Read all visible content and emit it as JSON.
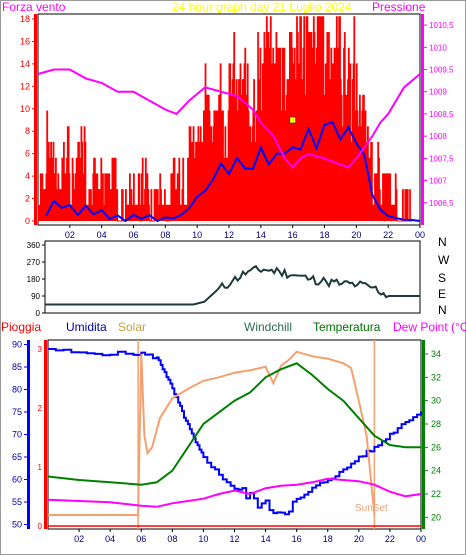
{
  "panel_wind": {
    "left_title": "Forza vento",
    "center_title": "24 hour graph day   21 Luglio 2024",
    "right_title": "Pressione",
    "colors": {
      "left": "#ff00ff",
      "center": "#ffff00",
      "right": "#ff00ff"
    }
  },
  "panel_dir": {
    "compass_labels": [
      "N",
      "W",
      "S",
      "E",
      "N"
    ]
  },
  "panel_weather": {
    "header_labels": [
      {
        "text": "Pioggia",
        "color": "#ff0000"
      },
      {
        "text": "Umidita",
        "color": "#0000aa"
      },
      {
        "text": "Solar",
        "color": "#c8a040"
      },
      {
        "text": "Windchill",
        "color": "#2e6b4f"
      },
      {
        "text": "Temperatura",
        "color": "#007000"
      },
      {
        "text": "Dew Point (°C)",
        "color": "#ff00ff"
      }
    ],
    "sunset_label": "SunSet"
  },
  "chart_data": [
    {
      "type": "line",
      "title": "24 hour graph day   21 Luglio 2024",
      "x_ticks": [
        "02",
        "04",
        "06",
        "08",
        "10",
        "12",
        "14",
        "16",
        "18",
        "20",
        "22",
        "00"
      ],
      "y_left": {
        "label": "Forza vento",
        "range": [
          0,
          18
        ],
        "ticks": [
          "0",
          "2",
          "4",
          "6",
          "8",
          "10",
          "12",
          "14",
          "16",
          "18"
        ]
      },
      "y_right": {
        "label": "Pressione",
        "range": [
          1006,
          1010.75
        ],
        "ticks": [
          "1006,5",
          "1007",
          "1007,5",
          "1008",
          "1008,5",
          "1009",
          "1009,5",
          "1010",
          "1010,5"
        ]
      },
      "series": [
        {
          "color": "#ff0000",
          "axis": "left",
          "style": "gust",
          "x": [
            0.5,
            1,
            1.5,
            2,
            2.5,
            3,
            3.5,
            4,
            4.5,
            5,
            5.5,
            6,
            6.5,
            7,
            7.5,
            8,
            8.5,
            9,
            9.5,
            10,
            10.5,
            11,
            11.5,
            12,
            12.5,
            13,
            13.5,
            14,
            14.5,
            15,
            15.5,
            16,
            16.5,
            17,
            17.5,
            18,
            18.5,
            19,
            19.5,
            20,
            20.5,
            21,
            21.5,
            22,
            22.5,
            23,
            23.5,
            24
          ],
          "values": [
            2,
            5,
            3,
            4,
            2,
            5,
            2,
            3,
            1,
            2,
            0,
            2,
            1,
            2,
            0,
            2,
            1,
            2,
            3,
            6,
            7,
            8,
            9,
            8,
            10,
            9,
            10,
            11,
            12,
            11,
            13,
            12,
            13,
            14,
            13,
            15,
            14,
            13,
            12,
            11,
            8,
            5,
            3,
            1,
            1,
            0,
            0,
            0
          ]
        },
        {
          "color": "#0000ff",
          "axis": "left",
          "style": "average",
          "x": [
            0.5,
            1,
            1.5,
            2,
            2.5,
            3,
            3.5,
            4,
            4.5,
            5,
            5.5,
            6,
            6.5,
            7,
            7.5,
            8,
            8.5,
            9,
            9.5,
            10,
            10.5,
            11,
            11.5,
            12,
            12.5,
            13,
            13.5,
            14,
            14.5,
            15,
            15.5,
            16,
            16.5,
            17,
            17.5,
            18,
            18.5,
            19,
            19.5,
            20,
            20.5,
            21,
            21.5,
            22,
            22.5,
            23,
            23.5,
            24
          ],
          "values": [
            0.5,
            2,
            1,
            1.5,
            0.5,
            1.5,
            0.5,
            1,
            0.2,
            0.5,
            0,
            0.5,
            0.2,
            0.5,
            0,
            0.4,
            0.2,
            0.5,
            1,
            2.5,
            3,
            4,
            4.5,
            4,
            5,
            5,
            5,
            6,
            6,
            5.5,
            6,
            6.5,
            7,
            8,
            8,
            9,
            9.5,
            9,
            8.5,
            8,
            5,
            2,
            1,
            0.5,
            0.3,
            0.1,
            0.1,
            0
          ],
          "highlights": [
            {
              "x": 16,
              "value": 9
            }
          ]
        },
        {
          "color": "#ff00ff",
          "axis": "right",
          "name": "Pressione",
          "x": [
            0,
            1,
            2,
            3,
            4,
            5,
            6,
            7,
            8,
            8.7,
            9.5,
            10.5,
            11.5,
            12.5,
            13.5,
            14,
            14.8,
            15.5,
            16,
            16.5,
            17,
            18,
            18.7,
            19.5,
            20,
            21,
            21.5,
            22,
            22.5,
            23,
            24
          ],
          "values": [
            1009.4,
            1009.5,
            1009.5,
            1009.3,
            1009.2,
            1009.0,
            1009.0,
            1008.8,
            1008.6,
            1008.5,
            1008.8,
            1009.1,
            1009.0,
            1008.9,
            1008.6,
            1008.3,
            1008.0,
            1007.5,
            1007.3,
            1007.5,
            1007.6,
            1007.5,
            1007.4,
            1007.3,
            1007.5,
            1008.0,
            1008.3,
            1008.5,
            1008.8,
            1009.1,
            1009.4
          ]
        }
      ]
    },
    {
      "type": "line",
      "title": "",
      "x_ticks": [],
      "y": {
        "range": [
          0,
          360
        ],
        "ticks": [
          "0",
          "90",
          "180",
          "270",
          "360"
        ]
      },
      "series": [
        {
          "color": "#1f3a3a",
          "x": [
            0,
            6,
            8,
            9.5,
            10.2,
            11,
            12,
            13,
            14,
            15,
            16,
            17,
            18,
            19,
            20,
            21,
            22,
            23,
            24
          ],
          "values": [
            45,
            45,
            45,
            45,
            60,
            120,
            170,
            220,
            230,
            220,
            200,
            180,
            165,
            155,
            150,
            135,
            90,
            90,
            90
          ]
        }
      ]
    },
    {
      "type": "line",
      "title": "",
      "x_ticks": [
        "02",
        "04",
        "06",
        "08",
        "10",
        "12",
        "14",
        "16",
        "18",
        "20",
        "22",
        "00"
      ],
      "y_left": {
        "range": [
          49,
          91
        ],
        "ticks": [
          "50",
          "55",
          "60",
          "65",
          "70",
          "75",
          "80",
          "85",
          "90"
        ]
      },
      "y_rain": {
        "range": [
          0,
          3.1
        ],
        "ticks": [
          "0",
          "1",
          "2",
          "3"
        ]
      },
      "y_right": {
        "range": [
          19,
          35.2
        ],
        "ticks": [
          "20",
          "22",
          "24",
          "26",
          "28",
          "30",
          "32",
          "34"
        ]
      },
      "series": [
        {
          "name": "Umidita",
          "color": "#0000ff",
          "axis": "left",
          "x": [
            0,
            2,
            4,
            6,
            7,
            7.5,
            8,
            8.5,
            9,
            9.5,
            10,
            11,
            12,
            13,
            14,
            15,
            16,
            17,
            18,
            19,
            20,
            21,
            22,
            23,
            24
          ],
          "values": [
            89,
            88,
            88,
            88,
            87,
            84,
            80,
            76,
            72,
            68,
            65,
            61,
            58,
            56,
            54,
            53,
            55,
            58,
            60,
            62,
            65,
            67,
            70,
            73,
            75
          ]
        },
        {
          "name": "Solar",
          "color": "#f4a070",
          "axis": "right",
          "x": [
            0,
            5.8,
            6,
            6.2,
            6.4,
            6.7,
            7.2,
            8,
            9,
            10,
            11,
            12,
            13,
            14,
            14.5,
            15,
            15.5,
            16,
            17,
            18,
            18.5,
            19,
            19.5,
            20,
            20.5,
            21
          ],
          "values": [
            20.2,
            20.2,
            34,
            27,
            25.5,
            26,
            28.5,
            30.2,
            31,
            31.7,
            32,
            32.4,
            32.6,
            32.9,
            31.5,
            33,
            33.5,
            34.2,
            33.8,
            33.6,
            33.4,
            33.2,
            32.8,
            30,
            27,
            20.2
          ]
        },
        {
          "name": "Temperatura",
          "color": "#008000",
          "axis": "right",
          "x": [
            0,
            2,
            4,
            6,
            7,
            8,
            9,
            10,
            11,
            12,
            13,
            14,
            15,
            16,
            17,
            18,
            19,
            20,
            21,
            22,
            23,
            24
          ],
          "values": [
            23.5,
            23.2,
            23.0,
            22.8,
            23.0,
            24.0,
            26.0,
            28.0,
            29.0,
            30.0,
            30.7,
            32.0,
            32.7,
            33.2,
            32.2,
            31.0,
            30.0,
            28.5,
            27.0,
            26.2,
            26.0,
            26.0
          ]
        },
        {
          "name": "Dew Point (°C)",
          "color": "#ff00ff",
          "axis": "right",
          "x": [
            0,
            2,
            4,
            6,
            7,
            8,
            9,
            10,
            11,
            12,
            13,
            14,
            15,
            16,
            17,
            18,
            19,
            20,
            21,
            22,
            23,
            24
          ],
          "values": [
            21.5,
            21.4,
            21.3,
            21.0,
            20.9,
            21.2,
            21.4,
            21.6,
            22.0,
            22.3,
            22.0,
            22.5,
            22.7,
            22.8,
            23.0,
            23.3,
            23.2,
            23.1,
            22.8,
            22.2,
            21.8,
            22.0
          ]
        },
        {
          "name": "Pioggia",
          "color": "#ff0000",
          "axis": "rain",
          "x": [
            0,
            24
          ],
          "values": [
            0,
            0
          ]
        }
      ]
    }
  ]
}
